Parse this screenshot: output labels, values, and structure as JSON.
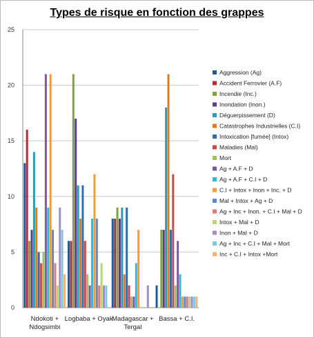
{
  "chart_data": {
    "type": "bar",
    "title": "Types de risque en fonction des grappes",
    "xlabel": "",
    "ylabel": "",
    "ylim": [
      0,
      25
    ],
    "yticks": [
      0,
      5,
      10,
      15,
      20,
      25
    ],
    "grid": true,
    "legend_position": "right",
    "categories": [
      [
        "Ndokoti +",
        "Ndogsimbi"
      ],
      [
        "Logbaba + Oyak"
      ],
      [
        "Madagascar +",
        "Tergal"
      ],
      [
        "Bassa + C.I."
      ]
    ],
    "series": [
      {
        "name": "Aggression (Ag)",
        "color": "#1f5a96",
        "values": [
          13,
          6,
          8,
          2
        ]
      },
      {
        "name": "Accident Ferrovier (A.F)",
        "color": "#b82c2c",
        "values": [
          16,
          6,
          8,
          0
        ]
      },
      {
        "name": "Incendie (Inc.)",
        "color": "#7fa33a",
        "values": [
          6,
          21,
          9,
          7
        ]
      },
      {
        "name": "Inondation (Inon.)",
        "color": "#5b3c8c",
        "values": [
          7,
          17,
          8,
          7
        ]
      },
      {
        "name": "Déguerpissement (D)",
        "color": "#2f9ab5",
        "values": [
          14,
          11,
          9,
          18
        ]
      },
      {
        "name": "Catastrophes Industrielles (C.I)",
        "color": "#e07b22",
        "values": [
          9,
          8,
          3,
          21
        ]
      },
      {
        "name": "Intoxication [fumée] (Intox)",
        "color": "#2e6cb0",
        "values": [
          5,
          11,
          9,
          7
        ]
      },
      {
        "name": "Maladies (Mal)",
        "color": "#d04848",
        "values": [
          4,
          6,
          2,
          12
        ]
      },
      {
        "name": "Mort",
        "color": "#9cc452",
        "values": [
          5,
          3,
          1,
          2
        ]
      },
      {
        "name": "Ag + A.F + D",
        "color": "#7b5aa8",
        "values": [
          21,
          2,
          1,
          6
        ]
      },
      {
        "name": "Ag + A.F + C.I + D",
        "color": "#3fb3d0",
        "values": [
          9,
          8,
          4,
          3
        ]
      },
      {
        "name": "C.I + Intox + Inon + Inc. + D",
        "color": "#f29a3c",
        "values": [
          21,
          12,
          7,
          1
        ]
      },
      {
        "name": "Mal + Intox + Ag + D",
        "color": "#5a8ad0",
        "values": [
          7,
          8,
          0,
          1
        ]
      },
      {
        "name": "Ag + Inc + Inon. + C.I + Mal + D",
        "color": "#e07a7a",
        "values": [
          4,
          2,
          0,
          1
        ]
      },
      {
        "name": "Intox + Mal + D",
        "color": "#b9d67a",
        "values": [
          2,
          4,
          0,
          1
        ]
      },
      {
        "name": "Inon + Mal + D",
        "color": "#a48cc8",
        "values": [
          9,
          2,
          2,
          1
        ]
      },
      {
        "name": "Ag + Inc + C.I + Mal + Mort",
        "color": "#7cc9e0",
        "values": [
          7,
          2,
          0,
          1
        ]
      },
      {
        "name": "Inc + C.I + Intox +Mort",
        "color": "#f5b070",
        "values": [
          3,
          0,
          0,
          1
        ]
      }
    ]
  }
}
